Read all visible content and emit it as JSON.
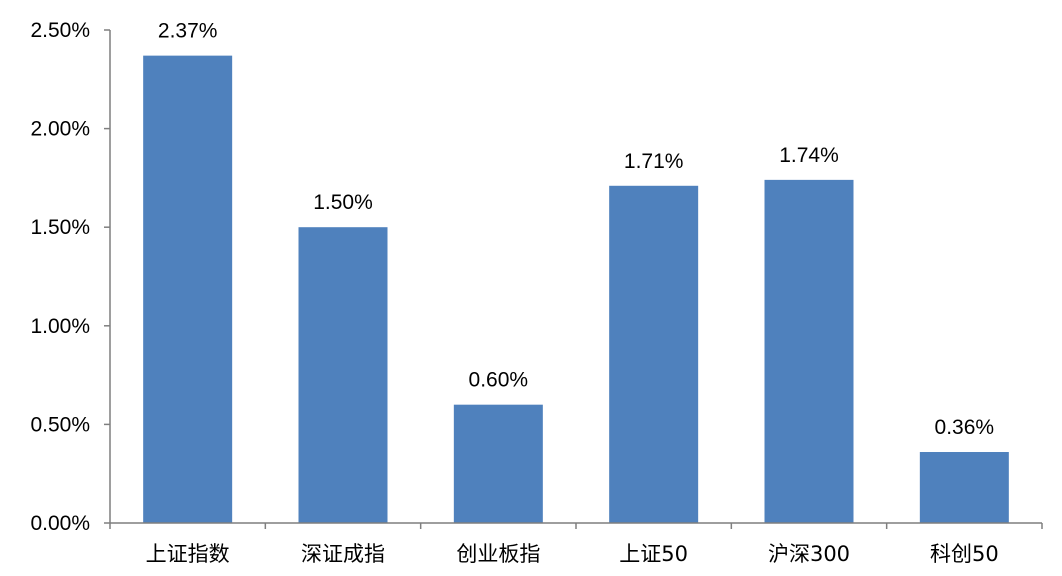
{
  "chart_data": {
    "type": "bar",
    "categories": [
      "上证指数",
      "深证成指",
      "创业板指",
      "上证50",
      "沪深300",
      "科创50"
    ],
    "values": [
      2.37,
      1.5,
      0.6,
      1.71,
      1.74,
      0.36
    ],
    "data_labels": [
      "2.37%",
      "1.50%",
      "0.60%",
      "1.71%",
      "1.74%",
      "0.36%"
    ],
    "y_ticks": [
      0,
      0.5,
      1.0,
      1.5,
      2.0,
      2.5
    ],
    "y_tick_labels": [
      "0.00%",
      "0.50%",
      "1.00%",
      "1.50%",
      "2.00%",
      "2.50%"
    ],
    "ylim": [
      0,
      2.5
    ],
    "y_unit": "%",
    "title": "",
    "xlabel": "",
    "ylabel": "",
    "grid": false,
    "legend": "none",
    "colors": {
      "bar": "#4F81BD",
      "axis": "#7F7F7F",
      "text": "#000000"
    }
  }
}
